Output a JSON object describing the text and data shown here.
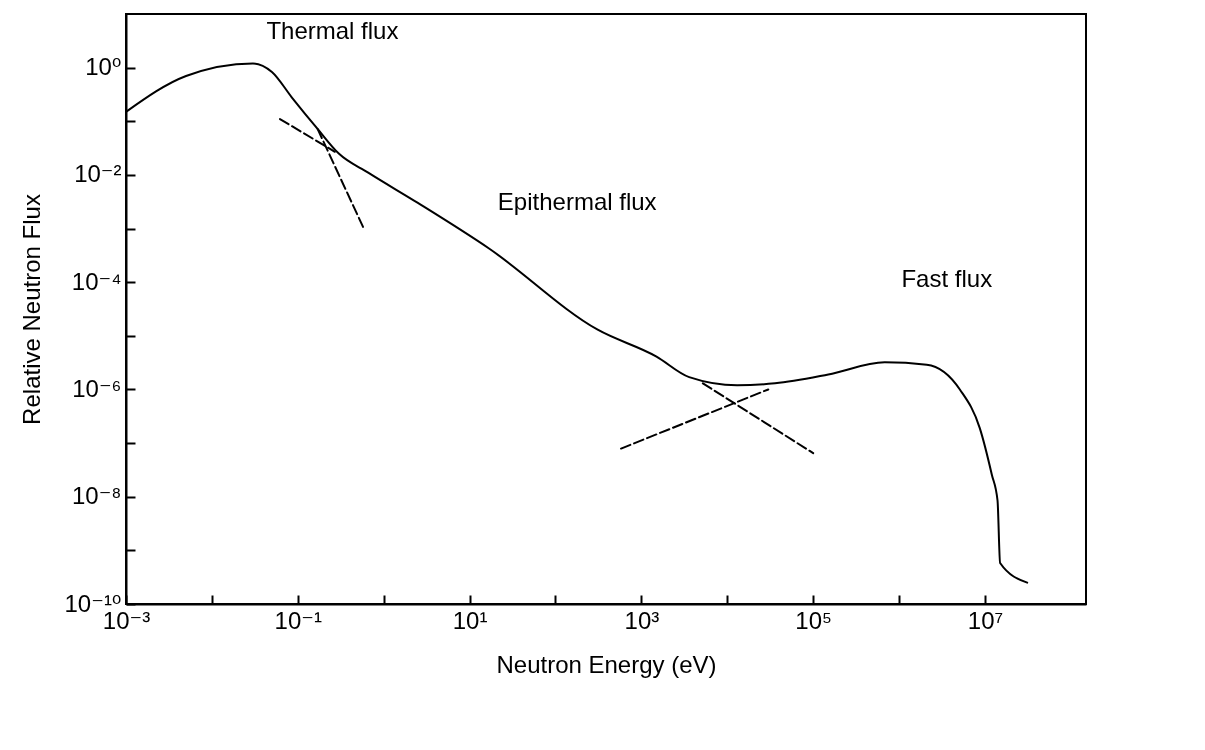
{
  "chart_data": {
    "type": "line",
    "xlabel": "Neutron Energy  (eV)",
    "ylabel": "Relative Neutron Flux",
    "log": "xy",
    "grid": false,
    "xlim": [
      0.001,
      150000000
    ],
    "ylim": [
      1e-10,
      10
    ],
    "xticks": [
      {
        "value": 0.001,
        "label": "10⁻³"
      },
      {
        "value": 0.01,
        "label": null
      },
      {
        "value": 0.1,
        "label": "10⁻¹"
      },
      {
        "value": 1,
        "label": null
      },
      {
        "value": 10,
        "label": "10¹"
      },
      {
        "value": 100,
        "label": null
      },
      {
        "value": 1000,
        "label": "10³"
      },
      {
        "value": 10000,
        "label": null
      },
      {
        "value": 100000,
        "label": "10⁵"
      },
      {
        "value": 1000000,
        "label": null
      },
      {
        "value": 10000000,
        "label": "10⁷"
      }
    ],
    "yticks": [
      {
        "value": 1,
        "label": "10⁰"
      },
      {
        "value": 0.1,
        "label": null
      },
      {
        "value": 0.01,
        "label": "10⁻²"
      },
      {
        "value": 0.001,
        "label": null
      },
      {
        "value": 0.0001,
        "label": "10⁻⁴"
      },
      {
        "value": 1e-05,
        "label": null
      },
      {
        "value": 1e-06,
        "label": "10⁻⁶"
      },
      {
        "value": 1e-07,
        "label": null
      },
      {
        "value": 1e-08,
        "label": "10⁻⁸"
      },
      {
        "value": 1e-09,
        "label": null
      },
      {
        "value": 1e-10,
        "label": "10⁻¹⁰"
      }
    ],
    "series": [
      {
        "color": "#000000",
        "line_style": "solid",
        "x": [
          0.001,
          0.005,
          0.03,
          0.05,
          0.085,
          0.17,
          0.3,
          0.66,
          2.5,
          17,
          310,
          1500,
          3600,
          13000,
          36000,
          150000,
          680000,
          2100000,
          5100000,
          8700000,
          12000000,
          14000000,
          15000000,
          31000000
        ],
        "values": [
          0.15,
          0.7,
          1.2,
          0.83,
          0.28,
          0.072,
          0.025,
          0.011,
          0.003,
          0.00042,
          1.3e-05,
          4.1e-06,
          1.7e-06,
          1.2e-06,
          1.3e-06,
          1.9e-06,
          3.2e-06,
          2.9e-06,
          1e-06,
          1.9e-07,
          2.6e-08,
          8.5e-09,
          5.8e-10,
          2.5e-10
        ]
      },
      {
        "color": "#000000",
        "line_style": "dashed",
        "x": [
          0.062,
          0.27
        ],
        "values": [
          0.11,
          0.027
        ]
      },
      {
        "color": "#000000",
        "line_style": "dashed",
        "x": [
          0.17,
          0.59
        ],
        "values": [
          0.072,
          0.00098
        ]
      },
      {
        "color": "#000000",
        "line_style": "dashed",
        "x": [
          5200,
          100000
        ],
        "values": [
          1.3e-06,
          6.5e-08
        ]
      },
      {
        "color": "#000000",
        "line_style": "dashed",
        "x": [
          580,
          30000
        ],
        "values": [
          7.9e-08,
          1e-06
        ]
      }
    ],
    "annotations": [
      "Thermal flux",
      "Epithermal flux",
      "Fast flux"
    ]
  }
}
